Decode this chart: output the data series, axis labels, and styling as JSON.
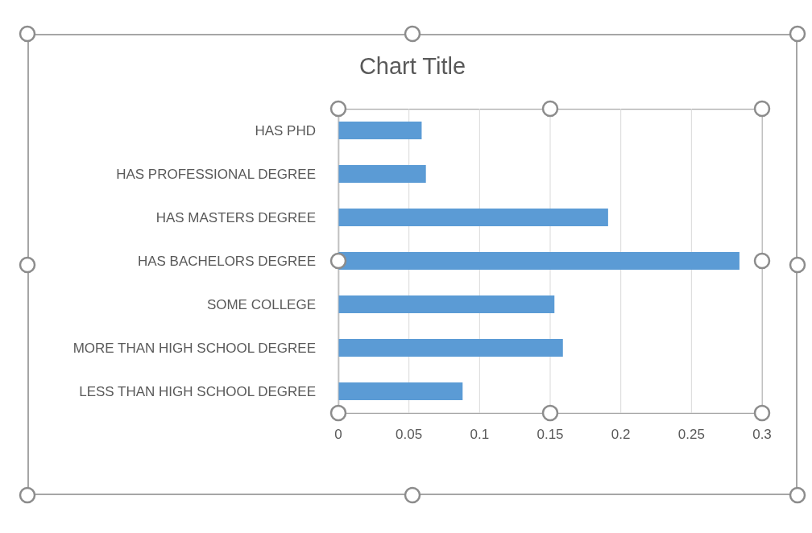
{
  "chart_data": {
    "type": "bar",
    "orientation": "horizontal",
    "title": "Chart Title",
    "categories": [
      "HAS PHD",
      "HAS PROFESSIONAL DEGREE",
      "HAS MASTERS DEGREE",
      "HAS BACHELORS DEGREE",
      "SOME COLLEGE",
      "MORE THAN HIGH SCHOOL DEGREE",
      "LESS THAN HIGH SCHOOL DEGREE"
    ],
    "values": [
      0.059,
      0.062,
      0.191,
      0.284,
      0.153,
      0.159,
      0.088
    ],
    "color": "#5b9bd5",
    "xlim": [
      0,
      0.3
    ],
    "xticks": [
      0,
      0.05,
      0.1,
      0.15,
      0.2,
      0.25,
      0.3
    ],
    "grid": "x",
    "legend": false
  }
}
